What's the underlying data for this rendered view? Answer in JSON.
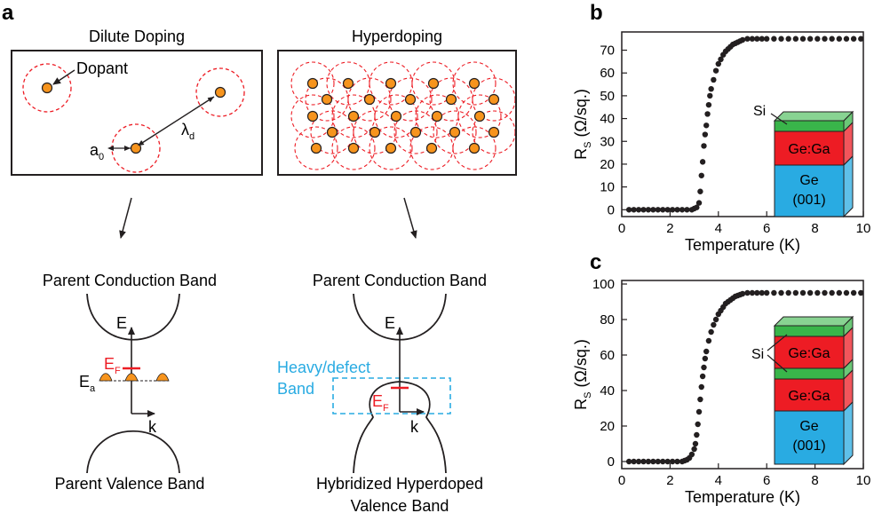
{
  "panel_a": {
    "letter": "a",
    "dilute": {
      "title": "Dilute Doping",
      "dopant_label": "Dopant",
      "a0_label": "a",
      "a0_sub": "0",
      "lambda_label": "λ",
      "lambda_sub": "d",
      "band_top": "Parent Conduction Band",
      "band_bottom": "Parent Valence Band",
      "axis_E": "E",
      "axis_k": "k",
      "ef_label": "E",
      "ef_sub": "F",
      "ea_label": "E",
      "ea_sub": "a"
    },
    "hyper": {
      "title": "Hyperdoping",
      "band_top": "Parent Conduction Band",
      "band_bottom_1": "Hybridized Hyperdoped",
      "band_bottom_2": "Valence Band",
      "defect_1": "Heavy/defect",
      "defect_2": "Band",
      "axis_E": "E",
      "axis_k": "k",
      "ef_label": "E",
      "ef_sub": "F"
    }
  },
  "panel_b": {
    "letter": "b"
  },
  "panel_c": {
    "letter": "c"
  },
  "colors": {
    "dopant": "#f7941d",
    "dashed": "#ed1c24",
    "ef": "#ed1c24",
    "defect": "#29abe2",
    "si": "#39b54a",
    "gega": "#ed1c24",
    "ge": "#29abe2"
  },
  "chart_data": [
    {
      "type": "scatter",
      "panel": "b",
      "xlabel": "Temperature (K)",
      "ylabel_main": "R",
      "ylabel_sub": "S",
      "ylabel_unit": "(Ω/sq.)",
      "xlim": [
        0,
        10
      ],
      "ylim": [
        -3,
        78
      ],
      "xticks": [
        0,
        2,
        4,
        6,
        8,
        10
      ],
      "yticks": [
        0,
        10,
        20,
        30,
        40,
        50,
        60,
        70
      ],
      "x": [
        0.3,
        0.5,
        0.7,
        0.9,
        1.1,
        1.3,
        1.5,
        1.7,
        1.9,
        2.1,
        2.3,
        2.5,
        2.7,
        2.9,
        3.0,
        3.1,
        3.2,
        3.25,
        3.3,
        3.35,
        3.4,
        3.45,
        3.5,
        3.55,
        3.6,
        3.65,
        3.7,
        3.8,
        3.9,
        4.0,
        4.1,
        4.2,
        4.3,
        4.4,
        4.5,
        4.6,
        4.7,
        4.8,
        4.9,
        5.0,
        5.2,
        5.4,
        5.6,
        5.8,
        6.0,
        6.3,
        6.6,
        6.9,
        7.2,
        7.5,
        7.8,
        8.1,
        8.4,
        8.7,
        9.0,
        9.3,
        9.6,
        9.9
      ],
      "y": [
        0,
        0,
        0,
        0,
        0,
        0,
        0,
        0,
        0,
        0,
        0,
        0,
        0,
        0,
        0.5,
        1,
        3,
        8,
        15,
        21,
        28,
        33,
        37,
        42,
        46,
        50,
        53,
        57,
        61,
        64,
        66,
        68,
        69.5,
        70.5,
        71.5,
        72.5,
        73,
        73.5,
        74,
        74.5,
        75,
        75,
        75,
        75,
        75,
        75,
        75,
        75,
        75,
        75,
        75,
        75,
        75,
        75,
        75,
        75,
        75,
        75
      ],
      "inset": {
        "layers": [
          "Si",
          "Ge:Ga",
          "Ge"
        ],
        "substrate_sub": "(001)"
      }
    },
    {
      "type": "scatter",
      "panel": "c",
      "xlabel": "Temperature (K)",
      "ylabel_main": "R",
      "ylabel_sub": "S",
      "ylabel_unit": "(Ω/sq.)",
      "xlim": [
        0,
        10
      ],
      "ylim": [
        -4,
        102
      ],
      "xticks": [
        0,
        2,
        4,
        6,
        8,
        10
      ],
      "yticks": [
        0,
        20,
        40,
        60,
        80,
        100
      ],
      "x": [
        0.3,
        0.5,
        0.7,
        0.9,
        1.1,
        1.3,
        1.5,
        1.7,
        1.9,
        2.1,
        2.3,
        2.5,
        2.6,
        2.7,
        2.8,
        2.9,
        3.0,
        3.05,
        3.1,
        3.15,
        3.2,
        3.25,
        3.3,
        3.35,
        3.4,
        3.45,
        3.5,
        3.6,
        3.7,
        3.8,
        3.9,
        4.0,
        4.1,
        4.2,
        4.3,
        4.4,
        4.5,
        4.6,
        4.7,
        4.8,
        4.9,
        5.0,
        5.2,
        5.4,
        5.6,
        5.8,
        6.0,
        6.3,
        6.6,
        6.9,
        7.2,
        7.5,
        7.8,
        8.1,
        8.4,
        8.7,
        9.0,
        9.3,
        9.6,
        9.9
      ],
      "y": [
        0,
        0,
        0,
        0,
        0,
        0,
        0,
        0,
        0,
        0,
        0,
        0,
        0.5,
        1,
        2,
        4,
        7,
        10,
        15,
        21,
        28,
        35,
        42,
        48,
        53,
        58,
        62,
        68,
        73,
        77,
        80,
        83,
        85,
        87,
        89,
        90,
        91,
        92,
        93,
        93.5,
        94,
        94.5,
        95,
        95,
        95,
        95,
        95,
        95,
        95,
        95,
        95,
        95,
        95,
        95,
        95,
        95,
        95,
        95,
        95,
        95
      ],
      "inset": {
        "layers": [
          "Si",
          "Ge:Ga",
          "Ge:Ga",
          "Ge"
        ],
        "substrate_sub": "(001)"
      }
    }
  ]
}
